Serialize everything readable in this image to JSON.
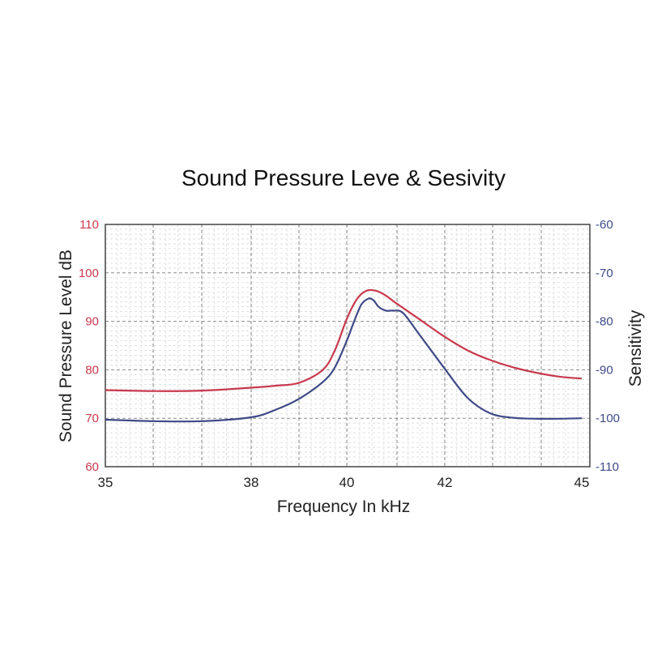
{
  "chart_data": {
    "type": "line",
    "title": "Sound Pressure Leve & Sesivity",
    "xlabel": "Frequency In kHz",
    "ylabel_left": "Sound Pressure Level dB",
    "ylabel_right": "Sensitivity",
    "x_ticks": [
      {
        "value": 35,
        "label": "35"
      },
      {
        "value": 38,
        "label": "38"
      },
      {
        "value": 40,
        "label": "40"
      },
      {
        "value": 42,
        "label": "42"
      },
      {
        "value": 45,
        "label": "45"
      }
    ],
    "y_left_ticks": [
      60,
      70,
      80,
      90,
      100,
      110
    ],
    "y_right_ticks": [
      -110,
      -100,
      -90,
      -80,
      -70,
      -60
    ],
    "ylim_left": [
      60,
      110
    ],
    "ylim_right": [
      -110,
      -60
    ],
    "grid": true,
    "series": [
      {
        "axis": "left",
        "color": "#c8394d",
        "x": [
          35,
          36,
          37,
          38,
          38.5,
          39,
          39.5,
          39.75,
          40,
          40.2,
          40.4,
          40.6,
          40.8,
          41,
          41.5,
          42,
          42.5,
          43,
          43.5,
          44,
          44.5,
          45
        ],
        "values": [
          75.8,
          75.6,
          75.7,
          76.3,
          76.7,
          77.3,
          80,
          84,
          90.5,
          94.5,
          96.3,
          96.3,
          95.3,
          93.8,
          90.3,
          86.8,
          84,
          82,
          80.5,
          79.4,
          78.6,
          78.2
        ]
      },
      {
        "axis": "right",
        "color": "#3f4a86",
        "x": [
          35,
          36,
          37,
          38,
          38.5,
          39,
          39.5,
          39.75,
          40,
          40.15,
          40.3,
          40.45,
          40.55,
          40.65,
          40.8,
          40.95,
          41.15,
          41.5,
          42,
          42.5,
          43,
          43.5,
          44,
          44.5,
          45
        ],
        "values": [
          -100.3,
          -100.6,
          -100.6,
          -99.8,
          -98.3,
          -96,
          -92.5,
          -89.5,
          -84,
          -80,
          -76.5,
          -75.3,
          -75.7,
          -77,
          -77.8,
          -77.8,
          -78.3,
          -83,
          -89.8,
          -95.8,
          -99,
          -99.9,
          -100.1,
          -100.1,
          -100
        ]
      }
    ]
  }
}
